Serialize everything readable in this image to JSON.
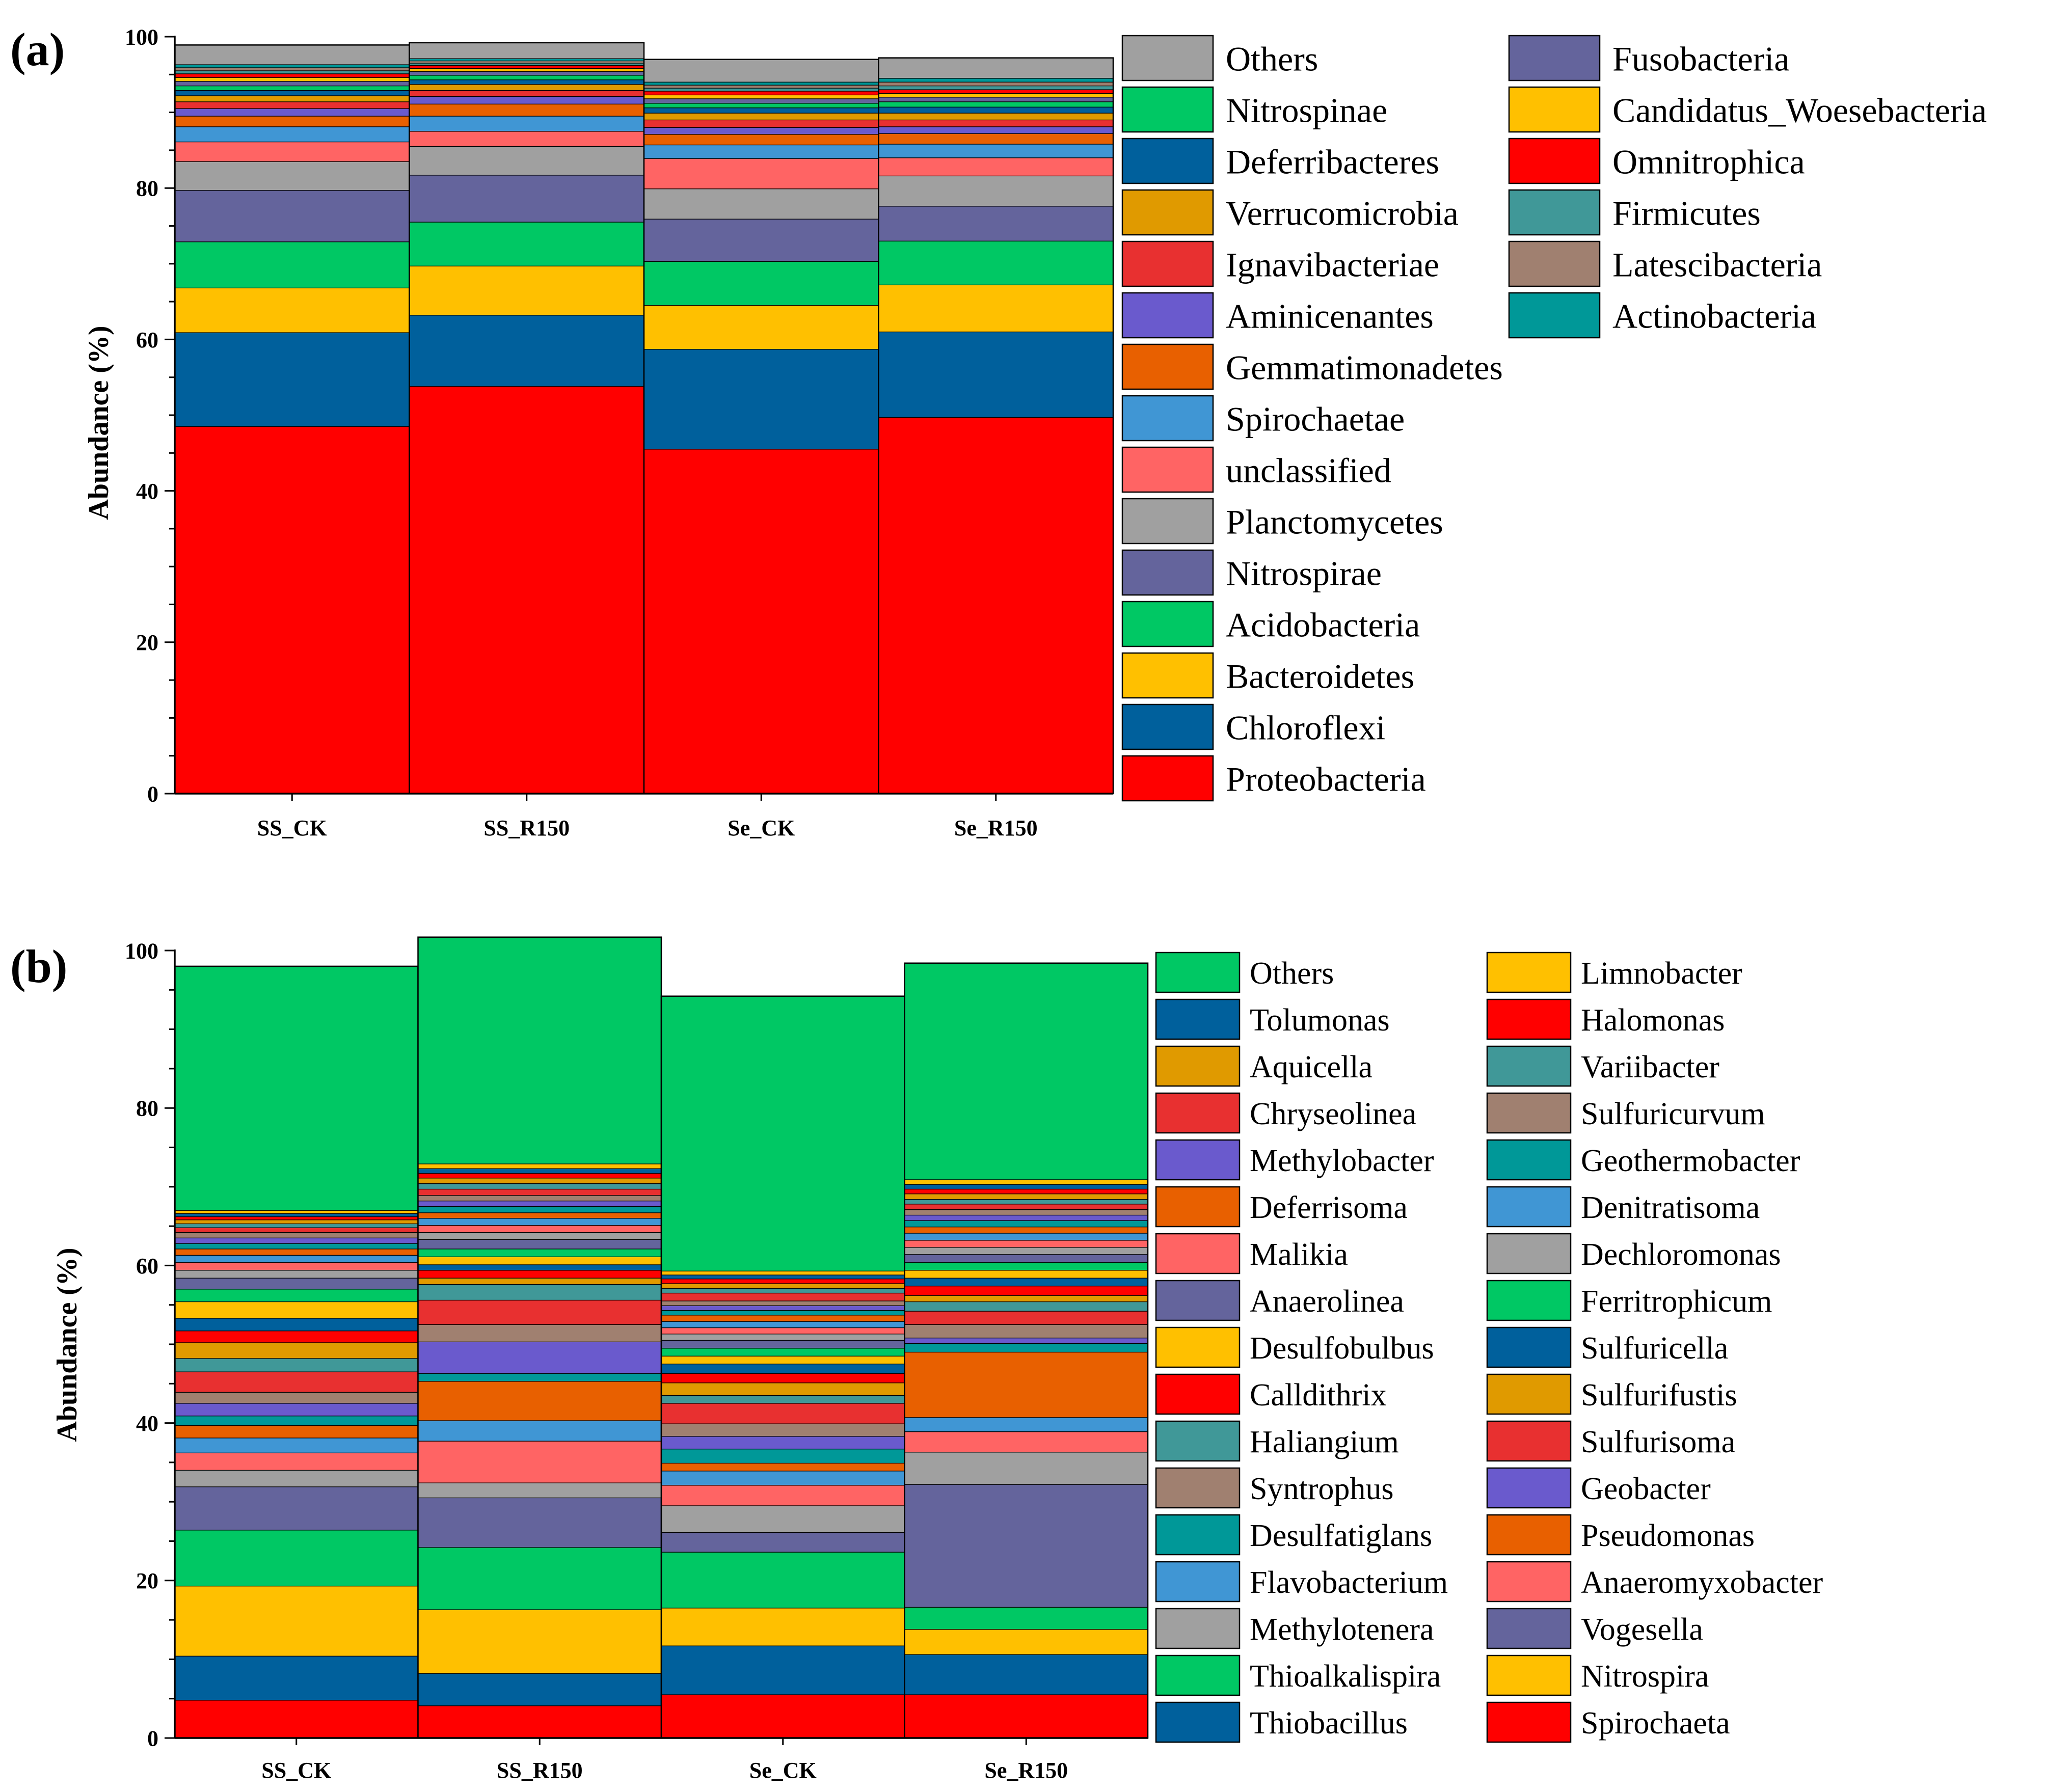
{
  "chart_data": [
    {
      "type": "bar",
      "stacked": true,
      "panel_label": "(a)",
      "ylabel": "Abundance (%)",
      "ylim": [
        0,
        100
      ],
      "yticks": [
        0,
        20,
        40,
        60,
        80,
        100
      ],
      "categories": [
        "SS_CK",
        "SS_R150",
        "Se_CK",
        "Se_R150"
      ],
      "series": [
        {
          "name": "Proteobacteria",
          "color": "#ff0000",
          "values": [
            48.5,
            53.8,
            45.5,
            49.7
          ]
        },
        {
          "name": "Chloroflexi",
          "color": "#00609c",
          "values": [
            12.4,
            9.4,
            13.2,
            11.3
          ]
        },
        {
          "name": "Bacteroidetes",
          "color": "#ffc000",
          "values": [
            5.9,
            6.5,
            5.8,
            6.2
          ]
        },
        {
          "name": "Acidobacteria",
          "color": "#00c864",
          "values": [
            6.1,
            5.8,
            5.8,
            5.8
          ]
        },
        {
          "name": "Nitrospirae",
          "color": "#64649c",
          "values": [
            6.8,
            6.2,
            5.6,
            4.6
          ]
        },
        {
          "name": "Planctomycetes",
          "color": "#a0a0a0",
          "values": [
            3.8,
            3.8,
            4.0,
            4.0
          ]
        },
        {
          "name": "unclassified",
          "color": "#ff6464",
          "values": [
            2.6,
            2.0,
            4.0,
            2.4
          ]
        },
        {
          "name": "Spirochaetae",
          "color": "#4096d4",
          "values": [
            2.0,
            2.0,
            1.8,
            1.8
          ]
        },
        {
          "name": "Gemmatimonadetes",
          "color": "#e86000",
          "values": [
            1.4,
            1.6,
            1.4,
            1.4
          ]
        },
        {
          "name": "Aminicenantes",
          "color": "#6a5acd",
          "values": [
            1.0,
            1.0,
            0.9,
            0.9
          ]
        },
        {
          "name": "Ignavibacteriae",
          "color": "#e83030",
          "values": [
            0.9,
            0.8,
            1.0,
            0.9
          ]
        },
        {
          "name": "Verrucomicrobia",
          "color": "#e09a00",
          "values": [
            0.8,
            0.8,
            0.9,
            0.9
          ]
        },
        {
          "name": "Deferribacteres",
          "color": "#00609c",
          "values": [
            0.7,
            0.6,
            0.7,
            0.8
          ]
        },
        {
          "name": "Nitrospinae",
          "color": "#00c864",
          "values": [
            0.6,
            0.6,
            0.6,
            0.7
          ]
        },
        {
          "name": "Fusobacteria",
          "color": "#64649c",
          "values": [
            0.6,
            0.5,
            0.6,
            0.6
          ]
        },
        {
          "name": "Candidatus_Woesebacteria",
          "color": "#ffc000",
          "values": [
            0.5,
            0.4,
            0.5,
            0.5
          ]
        },
        {
          "name": "Omnitrophica",
          "color": "#ff0000",
          "values": [
            0.5,
            0.4,
            0.5,
            0.5
          ]
        },
        {
          "name": "Firmicutes",
          "color": "#409898",
          "values": [
            0.4,
            0.3,
            0.4,
            0.5
          ]
        },
        {
          "name": "Latescibacteria",
          "color": "#a08070",
          "values": [
            0.4,
            0.3,
            0.4,
            0.5
          ]
        },
        {
          "name": "Actinobacteria",
          "color": "#009898",
          "values": [
            0.4,
            0.3,
            0.4,
            0.5
          ]
        },
        {
          "name": "Others",
          "color": "#a0a0a0",
          "values": [
            2.6,
            2.1,
            3.0,
            2.7
          ]
        }
      ],
      "legend_order": [
        "Others",
        "Nitrospinae",
        "Deferribacteres",
        "Verrucomicrobia",
        "Ignavibacteriae",
        "Aminicenantes",
        "Gemmatimonadetes",
        "Spirochaetae",
        "unclassified",
        "Planctomycetes",
        "Nitrospirae",
        "Acidobacteria",
        "Bacteroidetes",
        "Chloroflexi",
        "Proteobacteria",
        "Fusobacteria",
        "Candidatus_Woesebacteria",
        "Omnitrophica",
        "Firmicutes",
        "Latescibacteria",
        "Actinobacteria"
      ]
    },
    {
      "type": "bar",
      "stacked": true,
      "panel_label": "(b)",
      "ylabel": "Abundance (%)",
      "ylim": [
        0,
        100
      ],
      "yticks": [
        0,
        20,
        40,
        60,
        80,
        100
      ],
      "categories": [
        "SS_CK",
        "SS_R150",
        "Se_CK",
        "Se_R150"
      ],
      "series": [
        {
          "name": "Spirochaeta",
          "color": "#ff0000",
          "values": [
            4.8,
            4.1,
            5.5,
            5.5
          ]
        },
        {
          "name": "Thiobacillus",
          "color": "#00609c",
          "values": [
            5.6,
            4.1,
            6.2,
            5.1
          ]
        },
        {
          "name": "Nitrospira",
          "color": "#ffc000",
          "values": [
            8.9,
            8.1,
            4.8,
            3.2
          ]
        },
        {
          "name": "Thioalkalispira",
          "color": "#00c864",
          "values": [
            7.1,
            7.9,
            7.1,
            2.8
          ]
        },
        {
          "name": "Vogesella",
          "color": "#64649c",
          "values": [
            5.5,
            6.3,
            2.5,
            15.6
          ]
        },
        {
          "name": "Methylotenera",
          "color": "#a0a0a0",
          "values": [
            2.1,
            1.9,
            3.4,
            4.1
          ]
        },
        {
          "name": "Anaeromyxobacter",
          "color": "#ff6464",
          "values": [
            2.2,
            5.3,
            2.6,
            2.6
          ]
        },
        {
          "name": "Flavobacterium",
          "color": "#4096d4",
          "values": [
            1.9,
            2.6,
            1.8,
            1.8
          ]
        },
        {
          "name": "Pseudomonas",
          "color": "#e86000",
          "values": [
            1.6,
            5.0,
            1.0,
            8.3
          ]
        },
        {
          "name": "Desulfatiglans",
          "color": "#009898",
          "values": [
            1.2,
            1.0,
            1.8,
            1.1
          ]
        },
        {
          "name": "Geobacter",
          "color": "#6a5acd",
          "values": [
            1.6,
            4.0,
            1.6,
            0.7
          ]
        },
        {
          "name": "Syntrophus",
          "color": "#a08070",
          "values": [
            1.4,
            2.2,
            1.6,
            1.7
          ]
        },
        {
          "name": "Sulfurisoma",
          "color": "#e83030",
          "values": [
            2.6,
            3.1,
            2.6,
            1.7
          ]
        },
        {
          "name": "Haliangium",
          "color": "#409898",
          "values": [
            1.7,
            2.0,
            1.0,
            1.2
          ]
        },
        {
          "name": "Sulfurifustis",
          "color": "#e09a00",
          "values": [
            2.0,
            0.8,
            1.6,
            0.8
          ]
        },
        {
          "name": "Calldithrix",
          "color": "#ff0000",
          "values": [
            1.5,
            1.0,
            1.2,
            1.2
          ]
        },
        {
          "name": "Sulfuricella",
          "color": "#00609c",
          "values": [
            1.6,
            0.7,
            1.2,
            1.0
          ]
        },
        {
          "name": "Desulfobulbus",
          "color": "#ffc000",
          "values": [
            2.1,
            1.0,
            1.0,
            1.0
          ]
        },
        {
          "name": "Ferritrophicum",
          "color": "#00c864",
          "values": [
            1.6,
            1.0,
            1.0,
            1.0
          ]
        },
        {
          "name": "Anaerolinea",
          "color": "#64649c",
          "values": [
            1.4,
            1.2,
            1.0,
            1.0
          ]
        },
        {
          "name": "Dechloromonas",
          "color": "#a0a0a0",
          "values": [
            1.0,
            0.9,
            0.8,
            0.9
          ]
        },
        {
          "name": "Malikia",
          "color": "#ff6464",
          "values": [
            1.0,
            0.9,
            0.8,
            0.9
          ]
        },
        {
          "name": "Denitratisoma",
          "color": "#4096d4",
          "values": [
            0.9,
            0.9,
            0.8,
            0.9
          ]
        },
        {
          "name": "Deferrisoma",
          "color": "#e86000",
          "values": [
            0.8,
            0.7,
            0.8,
            0.8
          ]
        },
        {
          "name": "Geothermobacter",
          "color": "#009898",
          "values": [
            0.7,
            0.8,
            0.6,
            0.8
          ]
        },
        {
          "name": "Methylobacter",
          "color": "#6a5acd",
          "values": [
            0.7,
            0.7,
            0.6,
            0.7
          ]
        },
        {
          "name": "Sulfuricurvum",
          "color": "#a08070",
          "values": [
            0.7,
            0.7,
            0.6,
            0.7
          ]
        },
        {
          "name": "Chryseolinea",
          "color": "#e83030",
          "values": [
            0.6,
            0.8,
            1.0,
            0.7
          ]
        },
        {
          "name": "Variibacter",
          "color": "#409898",
          "values": [
            0.5,
            0.7,
            0.6,
            0.6
          ]
        },
        {
          "name": "Aquicella",
          "color": "#e09a00",
          "values": [
            0.5,
            0.7,
            0.6,
            0.7
          ]
        },
        {
          "name": "Halomonas",
          "color": "#ff0000",
          "values": [
            0.4,
            0.6,
            0.6,
            0.6
          ]
        },
        {
          "name": "Tolumonas",
          "color": "#00609c",
          "values": [
            0.4,
            0.6,
            0.5,
            0.6
          ]
        },
        {
          "name": "Limnobacter",
          "color": "#ffc000",
          "values": [
            0.4,
            0.6,
            0.5,
            0.6
          ]
        },
        {
          "name": "Others",
          "color": "#00c864",
          "values": [
            31.0,
            28.8,
            34.9,
            27.5
          ]
        }
      ],
      "legend_order": [
        "Others",
        "Tolumonas",
        "Aquicella",
        "Chryseolinea",
        "Methylobacter",
        "Deferrisoma",
        "Malikia",
        "Anaerolinea",
        "Desulfobulbus",
        "Calldithrix",
        "Haliangium",
        "Syntrophus",
        "Desulfatiglans",
        "Flavobacterium",
        "Methylotenera",
        "Thioalkalispira",
        "Thiobacillus",
        "Limnobacter",
        "Halomonas",
        "Variibacter",
        "Sulfuricurvum",
        "Geothermobacter",
        "Denitratisoma",
        "Dechloromonas",
        "Ferritrophicum",
        "Sulfuricella",
        "Sulfurifustis",
        "Sulfurisoma",
        "Geobacter",
        "Pseudomonas",
        "Anaeromyxobacter",
        "Vogesella",
        "Nitrospira",
        "Spirochaeta"
      ]
    }
  ]
}
